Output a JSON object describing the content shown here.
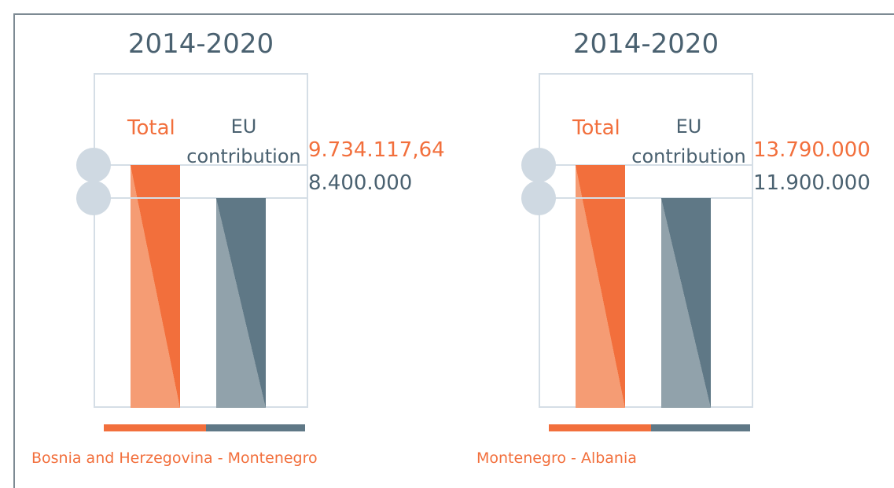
{
  "chart_data": [
    {
      "type": "bar",
      "title": "2014-2020",
      "categories": [
        "Total",
        "EU contribution"
      ],
      "values": [
        9734117.64,
        8400000
      ],
      "value_labels": [
        "9.734.117,64",
        "8.400.000"
      ],
      "colors": [
        "#f26f3c",
        "#5f7886"
      ],
      "caption": "Bosnia and Herzegovina - Montenegro"
    },
    {
      "type": "bar",
      "title": "2014-2020",
      "categories": [
        "Total",
        "EU contribution"
      ],
      "values": [
        13790000,
        11900000
      ],
      "value_labels": [
        "13.790.000",
        "11.900.000"
      ],
      "colors": [
        "#f26f3c",
        "#5f7886"
      ],
      "caption": "Montenegro - Albania"
    }
  ]
}
